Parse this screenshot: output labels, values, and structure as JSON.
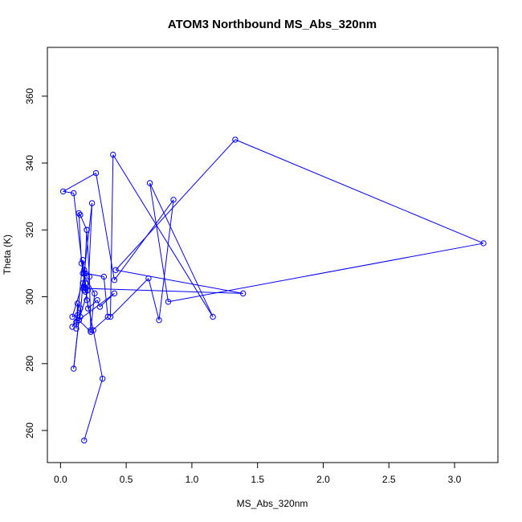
{
  "chart_data": {
    "type": "line",
    "title": "ATOM3 Northbound MS_Abs_320nm",
    "xlabel": "MS_Abs_320nm",
    "ylabel": "Theta (K)",
    "xlim": [
      -0.1,
      3.33
    ],
    "ylim": [
      250.4,
      374.6
    ],
    "x_ticks": [
      0.0,
      0.5,
      1.0,
      1.5,
      2.0,
      2.5,
      3.0
    ],
    "x_tick_labels": [
      "0.0",
      "0.5",
      "1.0",
      "1.5",
      "2.0",
      "2.5",
      "3.0"
    ],
    "y_ticks": [
      260,
      280,
      300,
      320,
      340,
      360
    ],
    "y_tick_labels": [
      "260",
      "280",
      "300",
      "320",
      "340",
      "360"
    ],
    "grid": false,
    "line_color": "#0000ff",
    "marker": "open-circle",
    "series": [
      {
        "x": [
          0.18,
          0.32,
          0.25,
          0.2,
          0.17,
          0.12,
          0.13,
          0.15,
          0.1,
          0.14,
          0.21,
          0.24,
          0.18,
          0.16,
          0.14,
          0.15,
          0.2,
          0.22,
          0.23,
          0.26,
          0.17,
          0.18,
          0.19,
          0.21,
          0.28,
          0.3,
          0.41,
          0.12,
          0.09,
          0.13,
          0.09,
          0.19,
          0.33,
          0.36,
          0.23,
          0.14,
          0.14,
          0.15,
          0.17,
          0.18,
          0.19,
          0.1,
          0.02,
          0.27,
          0.41,
          0.86,
          0.75,
          0.67,
          0.38,
          0.4,
          1.16,
          0.68,
          0.82,
          3.22,
          1.33,
          0.42,
          1.39,
          0.19,
          0.18,
          0.2
        ],
        "y": [
          257,
          275.5,
          290,
          299,
          311,
          290.5,
          298,
          296.5,
          278.5,
          293,
          302,
          328,
          307,
          310,
          325,
          324.5,
          320,
          306,
          290,
          301,
          307,
          308,
          304,
          296.5,
          299,
          297,
          301,
          292.5,
          291,
          294.5,
          294,
          307,
          306,
          294,
          289.5,
          293,
          293,
          294,
          304,
          302,
          301.5,
          331,
          331.5,
          337,
          305,
          329,
          293,
          305.5,
          294,
          342.5,
          294,
          334,
          298.5,
          316,
          347,
          308,
          301,
          302.5,
          303,
          320
        ]
      }
    ]
  }
}
